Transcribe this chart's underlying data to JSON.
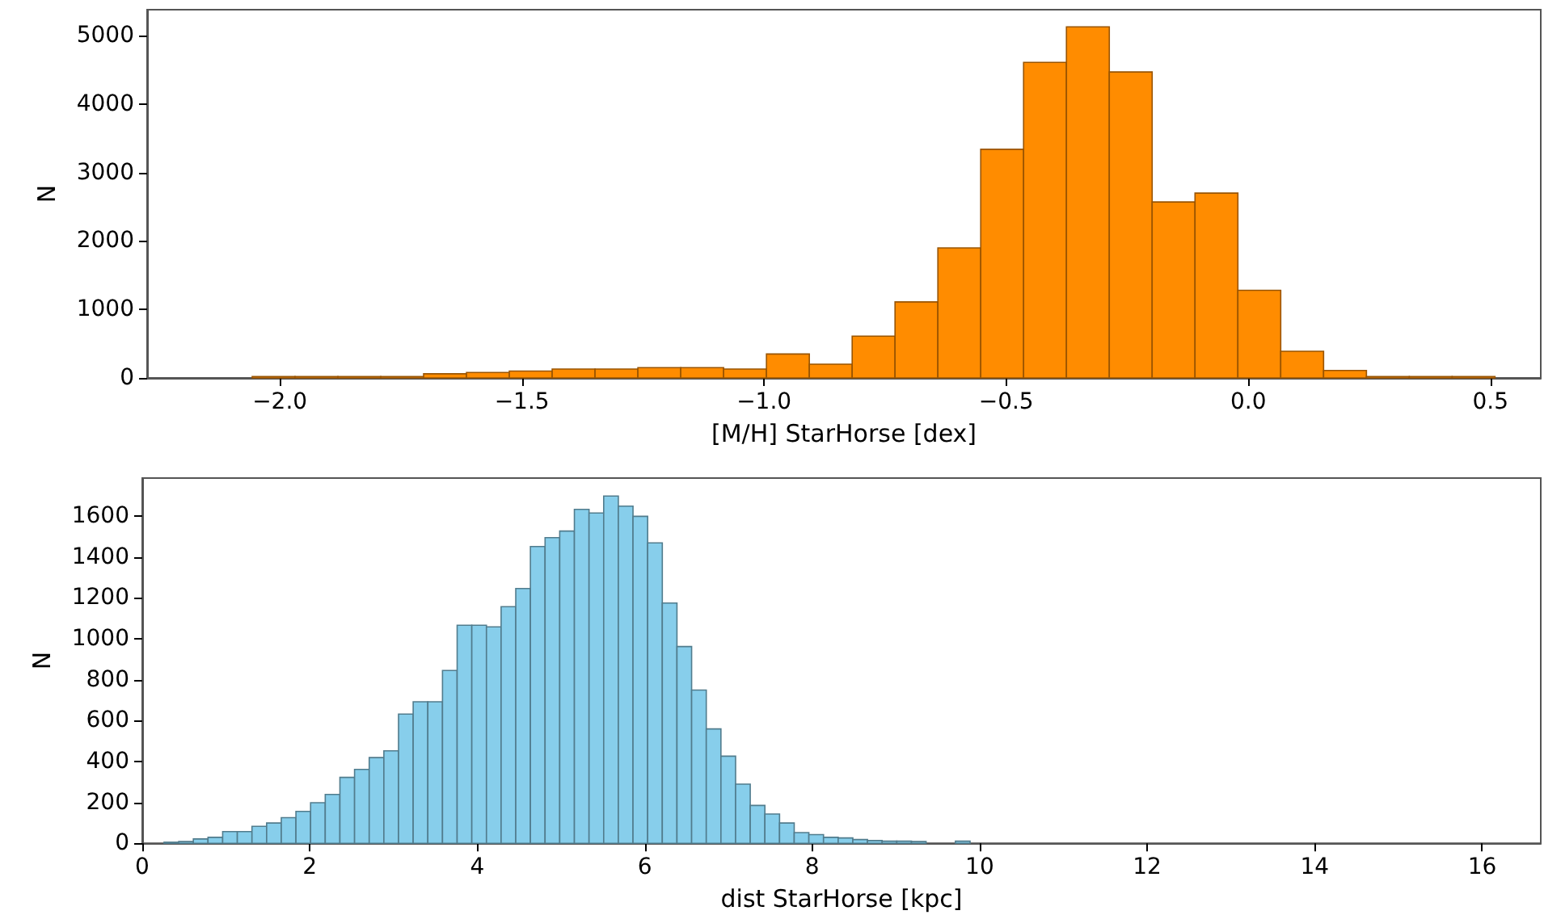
{
  "chart_data": [
    {
      "type": "histogram",
      "xlabel": "[M/H] StarHorse [dex]",
      "ylabel": "N",
      "color": "#ff8c00",
      "bins": [
        -2.057,
        -1.9685,
        -1.88,
        -1.7915,
        -1.703,
        -1.6145,
        -1.526,
        -1.4375,
        -1.349,
        -1.2605,
        -1.172,
        -1.0835,
        -0.995,
        -0.9065,
        -0.818,
        -0.7295,
        -0.641,
        -0.5525,
        -0.464,
        -0.3755,
        -0.287,
        -0.1985,
        -0.11,
        -0.0215,
        0.067,
        0.1555,
        0.244,
        0.3325,
        0.421,
        0.5095
      ],
      "values": [
        20,
        20,
        20,
        20,
        60,
        80,
        100,
        130,
        130,
        150,
        150,
        130,
        350,
        200,
        610,
        1110,
        1900,
        3340,
        4610,
        5130,
        4470,
        2570,
        2700,
        1280,
        390,
        110,
        20,
        20,
        20
      ],
      "xlim": [
        -2.274,
        0.604
      ],
      "xticks": [
        {
          "value": -2.0,
          "label": "−2.0"
        },
        {
          "value": -1.5,
          "label": "−1.5"
        },
        {
          "value": -1.0,
          "label": "−1.0"
        },
        {
          "value": -0.5,
          "label": "−0.5"
        },
        {
          "value": 0.0,
          "label": "0.0"
        },
        {
          "value": 0.5,
          "label": "0.5"
        }
      ],
      "ylim": [
        0,
        5380
      ],
      "yticks": [
        0,
        1000,
        2000,
        3000,
        4000,
        5000
      ],
      "grid": false
    },
    {
      "type": "histogram",
      "xlabel": "dist StarHorse [kpc]",
      "ylabel": "N",
      "color": "#87ceeb",
      "bins": [
        0.26,
        0.435,
        0.61,
        0.785,
        0.96,
        1.135,
        1.31,
        1.485,
        1.66,
        1.835,
        2.01,
        2.185,
        2.36,
        2.535,
        2.71,
        2.885,
        3.06,
        3.235,
        3.41,
        3.585,
        3.76,
        3.935,
        4.11,
        4.285,
        4.46,
        4.635,
        4.81,
        4.985,
        5.16,
        5.335,
        5.51,
        5.685,
        5.86,
        6.035,
        6.21,
        6.385,
        6.56,
        6.735,
        6.91,
        7.085,
        7.26,
        7.435,
        7.61,
        7.785,
        7.96,
        8.135,
        8.31,
        8.485,
        8.66,
        8.835,
        9.01,
        9.185,
        9.36,
        9.535,
        9.71,
        9.885
      ],
      "values": [
        5,
        8,
        21,
        29,
        57,
        57,
        83,
        99,
        125,
        156,
        198,
        239,
        322,
        361,
        419,
        452,
        632,
        692,
        692,
        845,
        1066,
        1066,
        1058,
        1157,
        1246,
        1451,
        1495,
        1527,
        1633,
        1615,
        1698,
        1649,
        1599,
        1469,
        1175,
        962,
        749,
        559,
        426,
        289,
        185,
        143,
        99,
        52,
        42,
        29,
        26,
        18,
        13,
        10,
        10,
        8,
        0,
        0,
        10
      ],
      "xlim": [
        0,
        16.7
      ],
      "xticks": [
        0,
        2,
        4,
        6,
        8,
        10,
        12,
        14,
        16
      ],
      "ylim": [
        0,
        1786
      ],
      "yticks": [
        0,
        200,
        400,
        600,
        800,
        1000,
        1200,
        1400,
        1600
      ],
      "grid": false
    }
  ]
}
